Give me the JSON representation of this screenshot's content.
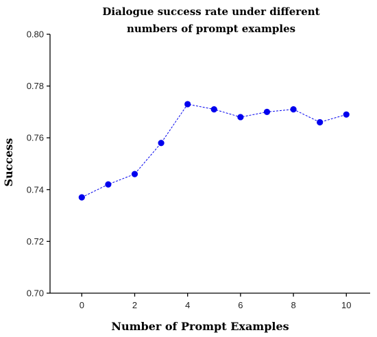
{
  "chart_data": {
    "type": "line",
    "title_lines": [
      "Dialogue success rate under different",
      "numbers of prompt examples"
    ],
    "xlabel": "Number of Prompt Examples",
    "ylabel": "Success",
    "x": [
      0,
      1,
      2,
      3,
      4,
      5,
      6,
      7,
      8,
      9,
      10
    ],
    "series": [
      {
        "values": [
          0.737,
          0.742,
          0.746,
          0.758,
          0.773,
          0.771,
          0.768,
          0.77,
          0.771,
          0.766,
          0.769
        ],
        "color": "#0000ee",
        "line_style": "dashed",
        "marker": "circle"
      }
    ],
    "xlim": [
      -1.2,
      10.9
    ],
    "ylim": [
      0.7,
      0.8
    ],
    "xticks": [
      0,
      2,
      4,
      6,
      8,
      10
    ],
    "xtick_labels": [
      "0",
      "2",
      "4",
      "6",
      "8",
      "10"
    ],
    "yticks": [
      0.7,
      0.72,
      0.74,
      0.76,
      0.78,
      0.8
    ],
    "ytick_labels": [
      "0.70",
      "0.72",
      "0.74",
      "0.76",
      "0.78",
      "0.80"
    ],
    "grid": false,
    "legend": "none"
  }
}
